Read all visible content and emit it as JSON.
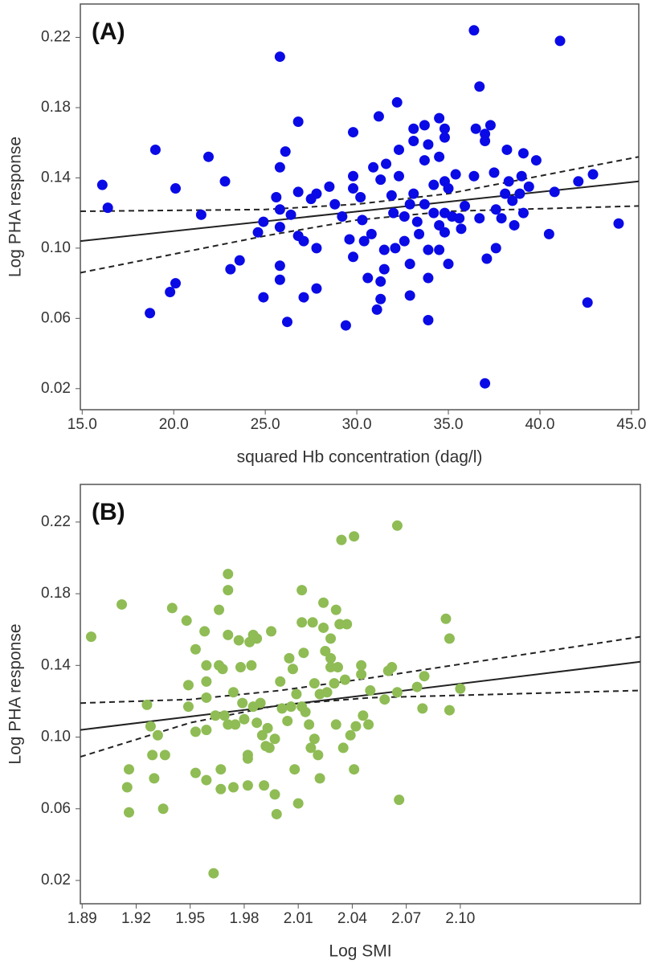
{
  "chart_data": [
    {
      "type": "scatter",
      "title": "(A)",
      "x_label": "squared Hb concentration (dag/l)",
      "y_label": "Log PHA response",
      "color": "#0a0ae6",
      "grid": false,
      "xlim": [
        14.9,
        45.4
      ],
      "ylim": [
        0.008,
        0.239
      ],
      "xticks": [
        {
          "value": 15,
          "label": "15.0"
        },
        {
          "value": 20,
          "label": "20.0"
        },
        {
          "value": 25,
          "label": "25.0"
        },
        {
          "value": 30,
          "label": "30.0"
        },
        {
          "value": 35,
          "label": "35.0"
        },
        {
          "value": 40,
          "label": "40.0"
        },
        {
          "value": 45,
          "label": "45.0"
        }
      ],
      "yticks": [
        0.02,
        0.06,
        {
          "value": 0.1,
          "label": "0.10"
        },
        0.14,
        0.18,
        0.22
      ],
      "x": [
        16.1,
        16.4,
        19.0,
        18.7,
        20.1,
        20.1,
        19.8,
        21.9,
        21.5,
        22.8,
        23.1,
        23.6,
        24.6,
        24.9,
        24.9,
        25.8,
        25.6,
        25.8,
        25.8,
        25.8,
        25.8,
        25.8,
        26.1,
        26.2,
        26.8,
        26.8,
        26.4,
        26.8,
        27.1,
        27.1,
        27.5,
        27.8,
        27.8,
        27.8,
        28.5,
        28.8,
        29.2,
        29.6,
        29.4,
        29.8,
        29.8,
        29.8,
        29.8,
        30.2,
        30.3,
        30.4,
        30.6,
        30.8,
        30.9,
        31.1,
        31.2,
        31.3,
        31.3,
        31.3,
        31.5,
        31.5,
        31.6,
        31.9,
        32.0,
        32.1,
        32.2,
        32.3,
        32.3,
        32.6,
        32.6,
        32.9,
        32.9,
        32.9,
        33.1,
        33.1,
        33.1,
        33.3,
        33.4,
        33.7,
        33.7,
        33.7,
        33.9,
        33.9,
        33.9,
        33.9,
        34.2,
        34.2,
        34.5,
        34.5,
        34.5,
        34.5,
        34.8,
        34.8,
        34.8,
        34.8,
        34.8,
        35.0,
        35.0,
        35.2,
        35.4,
        35.6,
        35.7,
        35.9,
        36.4,
        36.5,
        36.4,
        36.7,
        36.7,
        37.0,
        37.0,
        37.1,
        37.0,
        37.3,
        37.5,
        37.6,
        37.6,
        37.9,
        38.1,
        38.2,
        38.3,
        38.5,
        38.6,
        38.9,
        39.0,
        39.1,
        39.1,
        39.4,
        39.8,
        41.1,
        40.5,
        40.8,
        42.1,
        42.9,
        42.6,
        44.3
      ],
      "values": [
        0.136,
        0.123,
        0.156,
        0.063,
        0.134,
        0.08,
        0.075,
        0.152,
        0.119,
        0.138,
        0.088,
        0.093,
        0.109,
        0.115,
        0.072,
        0.209,
        0.129,
        0.122,
        0.146,
        0.112,
        0.09,
        0.082,
        0.155,
        0.058,
        0.172,
        0.132,
        0.119,
        0.107,
        0.104,
        0.072,
        0.128,
        0.131,
        0.1,
        0.077,
        0.135,
        0.125,
        0.118,
        0.105,
        0.056,
        0.166,
        0.141,
        0.134,
        0.095,
        0.129,
        0.116,
        0.104,
        0.083,
        0.108,
        0.146,
        0.065,
        0.175,
        0.139,
        0.081,
        0.071,
        0.099,
        0.088,
        0.148,
        0.13,
        0.12,
        0.1,
        0.183,
        0.156,
        0.141,
        0.118,
        0.104,
        0.125,
        0.091,
        0.073,
        0.168,
        0.161,
        0.131,
        0.115,
        0.108,
        0.125,
        0.15,
        0.17,
        0.159,
        0.099,
        0.083,
        0.059,
        0.12,
        0.136,
        0.174,
        0.152,
        0.113,
        0.099,
        0.168,
        0.163,
        0.138,
        0.12,
        0.109,
        0.134,
        0.091,
        0.118,
        0.142,
        0.117,
        0.111,
        0.124,
        0.141,
        0.168,
        0.224,
        0.192,
        0.117,
        0.165,
        0.161,
        0.094,
        0.023,
        0.17,
        0.143,
        0.122,
        0.1,
        0.117,
        0.131,
        0.156,
        0.138,
        0.127,
        0.113,
        0.131,
        0.141,
        0.154,
        0.12,
        0.135,
        0.15,
        0.218,
        0.108,
        0.132,
        0.138,
        0.142,
        0.069,
        0.114
      ],
      "lines": [
        {
          "style": "solid",
          "color": "#222222",
          "x": [
            14.9,
            45.4
          ],
          "values": [
            0.104,
            0.138
          ]
        },
        {
          "style": "dashed",
          "color": "#222222",
          "x": [
            14.9,
            25,
            30,
            35,
            45.4
          ],
          "values": [
            0.121,
            0.122,
            0.125,
            0.131,
            0.152
          ]
        },
        {
          "style": "dashed",
          "color": "#222222",
          "x": [
            14.9,
            25,
            30,
            35,
            45.4
          ],
          "values": [
            0.086,
            0.107,
            0.116,
            0.121,
            0.124
          ]
        }
      ]
    },
    {
      "type": "scatter",
      "title": "(B)",
      "x_label": "Log SMI",
      "y_label": "Log PHA response",
      "color": "#8fbc55",
      "grid": false,
      "xlim": [
        1.889,
        2.2
      ],
      "ylim": [
        0.007,
        0.241
      ],
      "xticks": [
        1.89,
        1.92,
        1.95,
        1.98,
        2.01,
        2.04,
        2.07,
        {
          "value": 2.1,
          "label": "2.10"
        }
      ],
      "yticks": [
        0.02,
        0.06,
        {
          "value": 0.1,
          "label": "0.10"
        },
        0.14,
        0.18,
        0.22
      ],
      "x": [
        1.895,
        1.912,
        1.916,
        1.915,
        1.916,
        1.926,
        1.928,
        1.929,
        1.93,
        1.932,
        1.935,
        1.936,
        1.94,
        1.948,
        1.949,
        1.949,
        1.953,
        1.953,
        1.953,
        1.958,
        1.959,
        1.959,
        1.959,
        1.959,
        1.959,
        1.963,
        1.964,
        1.966,
        1.966,
        1.967,
        1.967,
        1.968,
        1.969,
        1.971,
        1.971,
        1.971,
        1.971,
        1.974,
        1.974,
        1.975,
        1.977,
        1.978,
        1.979,
        1.98,
        1.982,
        1.982,
        1.982,
        1.983,
        1.984,
        1.985,
        1.985,
        1.987,
        1.987,
        1.989,
        1.99,
        1.991,
        1.992,
        1.993,
        1.994,
        1.995,
        1.997,
        1.997,
        1.998,
        2.0,
        2.001,
        2.004,
        2.005,
        2.006,
        2.007,
        2.008,
        2.009,
        2.01,
        2.012,
        2.012,
        2.012,
        2.013,
        2.014,
        2.016,
        2.017,
        2.018,
        2.019,
        2.019,
        2.021,
        2.022,
        2.022,
        2.024,
        2.024,
        2.025,
        2.026,
        2.028,
        2.028,
        2.028,
        2.03,
        2.031,
        2.031,
        2.032,
        2.033,
        2.034,
        2.035,
        2.036,
        2.037,
        2.039,
        2.041,
        2.041,
        2.042,
        2.045,
        2.045,
        2.046,
        2.049,
        2.05,
        2.058,
        2.06,
        2.062,
        2.065,
        2.065,
        2.066,
        2.076,
        2.079,
        2.08,
        2.092,
        2.094,
        2.094,
        2.1
      ],
      "values": [
        0.156,
        0.174,
        0.082,
        0.072,
        0.058,
        0.118,
        0.106,
        0.09,
        0.077,
        0.101,
        0.06,
        0.09,
        0.172,
        0.165,
        0.129,
        0.117,
        0.149,
        0.103,
        0.08,
        0.159,
        0.14,
        0.131,
        0.122,
        0.104,
        0.076,
        0.024,
        0.112,
        0.171,
        0.14,
        0.082,
        0.071,
        0.138,
        0.112,
        0.191,
        0.182,
        0.157,
        0.107,
        0.125,
        0.072,
        0.107,
        0.154,
        0.139,
        0.119,
        0.11,
        0.09,
        0.088,
        0.073,
        0.153,
        0.14,
        0.117,
        0.157,
        0.155,
        0.108,
        0.119,
        0.101,
        0.073,
        0.095,
        0.105,
        0.094,
        0.159,
        0.099,
        0.068,
        0.057,
        0.131,
        0.116,
        0.109,
        0.144,
        0.117,
        0.138,
        0.082,
        0.124,
        0.063,
        0.182,
        0.164,
        0.117,
        0.147,
        0.114,
        0.107,
        0.094,
        0.164,
        0.13,
        0.099,
        0.09,
        0.077,
        0.124,
        0.175,
        0.161,
        0.148,
        0.125,
        0.144,
        0.139,
        0.155,
        0.13,
        0.171,
        0.107,
        0.139,
        0.163,
        0.21,
        0.094,
        0.132,
        0.163,
        0.101,
        0.212,
        0.082,
        0.106,
        0.14,
        0.135,
        0.112,
        0.107,
        0.126,
        0.121,
        0.137,
        0.139,
        0.218,
        0.125,
        0.065,
        0.128,
        0.116,
        0.134,
        0.166,
        0.155,
        0.115,
        0.127
      ],
      "lines": [
        {
          "style": "solid",
          "color": "#222222",
          "x": [
            1.889,
            2.2
          ],
          "values": [
            0.104,
            0.142
          ]
        },
        {
          "style": "dashed",
          "color": "#222222",
          "x": [
            1.889,
            1.95,
            2.0,
            2.05,
            2.2
          ],
          "values": [
            0.119,
            0.121,
            0.126,
            0.133,
            0.156
          ]
        },
        {
          "style": "dashed",
          "color": "#222222",
          "x": [
            1.889,
            1.95,
            2.0,
            2.05,
            2.2
          ],
          "values": [
            0.089,
            0.108,
            0.118,
            0.122,
            0.126
          ]
        }
      ]
    }
  ]
}
